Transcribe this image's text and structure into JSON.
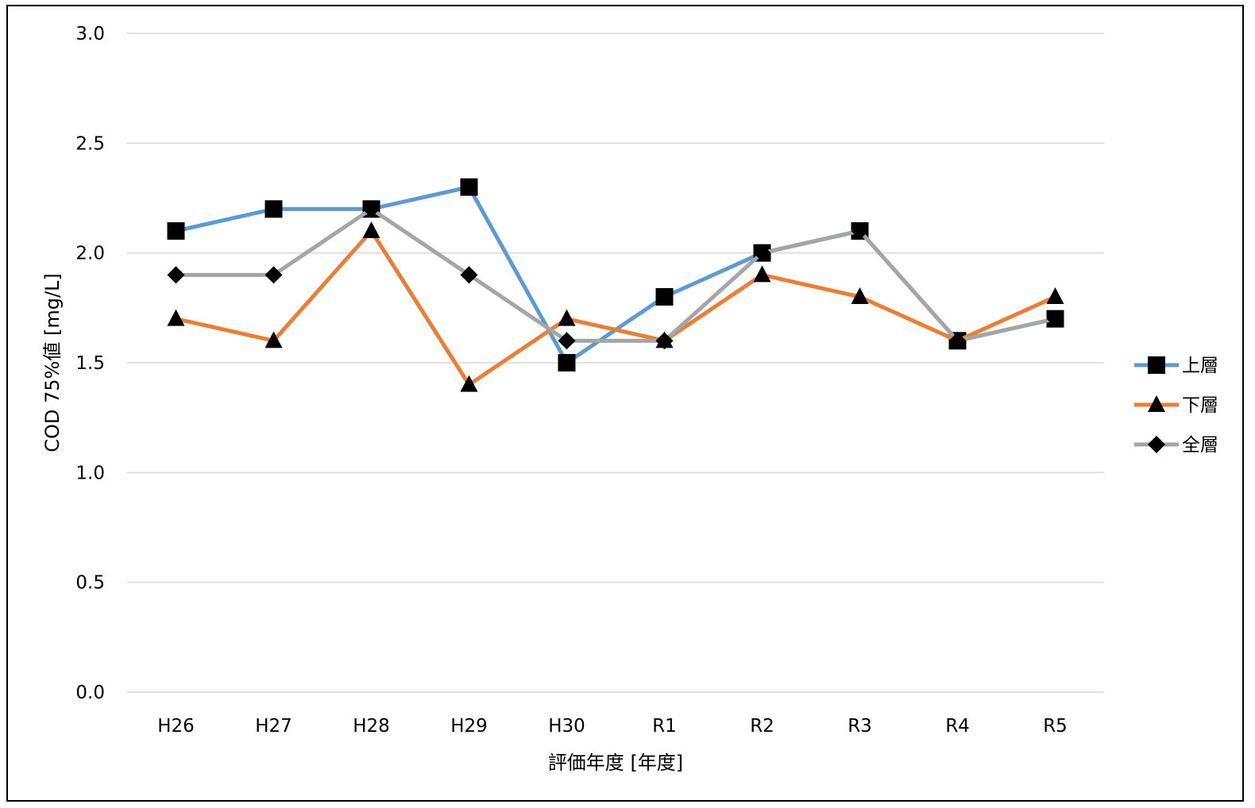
{
  "chart_data": {
    "type": "line",
    "title": "",
    "xlabel": "評価年度 [年度]",
    "ylabel": "COD 75%値 [mg/L]",
    "categories": [
      "H26",
      "H27",
      "H28",
      "H29",
      "H30",
      "R1",
      "R2",
      "R3",
      "R4",
      "R5"
    ],
    "ylim": [
      0,
      3.0
    ],
    "yticks": [
      "0.0",
      "0.5",
      "1.0",
      "1.5",
      "2.0",
      "2.5",
      "3.0"
    ],
    "grid": true,
    "legend_position": "right",
    "series": [
      {
        "name": "上層",
        "color": "#5B9BD5",
        "marker": "square",
        "values": [
          2.1,
          2.2,
          2.2,
          2.3,
          1.5,
          1.8,
          2.0,
          2.1,
          1.6,
          1.7
        ]
      },
      {
        "name": "下層",
        "color": "#ED7D31",
        "marker": "triangle",
        "values": [
          1.7,
          1.6,
          2.1,
          1.4,
          1.7,
          1.6,
          1.9,
          1.8,
          1.6,
          1.8
        ]
      },
      {
        "name": "全層",
        "color": "#A5A5A5",
        "marker": "diamond",
        "values": [
          1.9,
          1.9,
          2.2,
          1.9,
          1.6,
          1.6,
          2.0,
          2.1,
          1.6,
          1.7
        ]
      }
    ]
  }
}
